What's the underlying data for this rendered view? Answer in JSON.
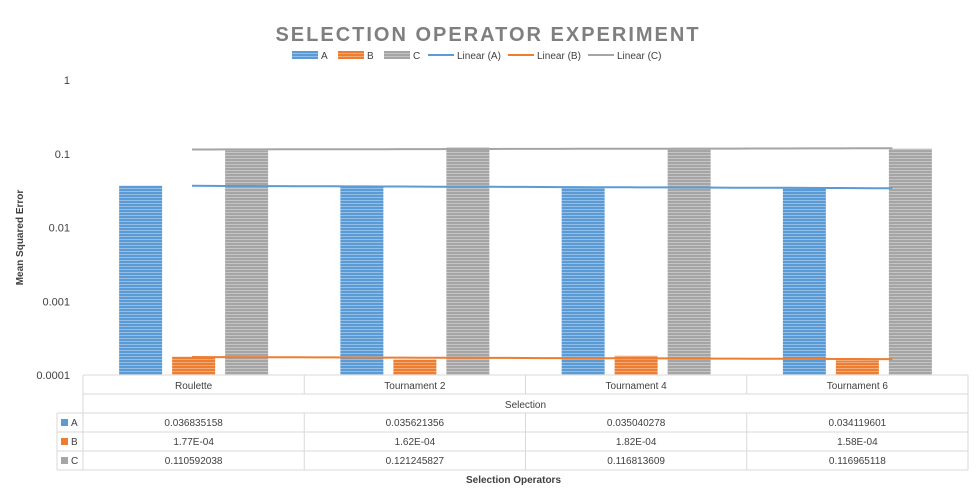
{
  "chart_data": {
    "type": "bar",
    "title": "SELECTION OPERATOR EXPERIMENT",
    "xlabel": "Selection Operators",
    "ylabel": "Mean Squared Error",
    "category_axis_label": "Selection",
    "y_scale": "log",
    "ylim": [
      0.0001,
      1
    ],
    "y_ticks": [
      "1",
      "0.1",
      "0.01",
      "0.001",
      "0.0001"
    ],
    "categories": [
      "Roulette",
      "Tournament 2",
      "Tournament 4",
      "Tournament 6"
    ],
    "series": [
      {
        "name": "A",
        "color": "#5b9bd5",
        "values": [
          0.036835158,
          0.035621356,
          0.035040278,
          0.034119601
        ],
        "labels": [
          "0.036835158",
          "0.035621356",
          "0.035040278",
          "0.034119601"
        ]
      },
      {
        "name": "B",
        "color": "#ed7d31",
        "values": [
          0.000177,
          0.000162,
          0.000182,
          0.000158
        ],
        "labels": [
          "1.77E-04",
          "1.62E-04",
          "1.82E-04",
          "1.58E-04"
        ]
      },
      {
        "name": "C",
        "color": "#a5a5a5",
        "values": [
          0.110592038,
          0.121245827,
          0.116813609,
          0.116965118
        ],
        "labels": [
          "0.110592038",
          "0.121245827",
          "0.116813609",
          "0.116965118"
        ]
      }
    ],
    "trendlines": [
      {
        "name": "Linear (A)",
        "color": "#5b9bd5",
        "type": "linear"
      },
      {
        "name": "Linear (B)",
        "color": "#ed7d31",
        "type": "linear"
      },
      {
        "name": "Linear (C)",
        "color": "#a5a5a5",
        "type": "linear"
      }
    ],
    "legend_position": "top",
    "grid": false,
    "data_table": true
  }
}
